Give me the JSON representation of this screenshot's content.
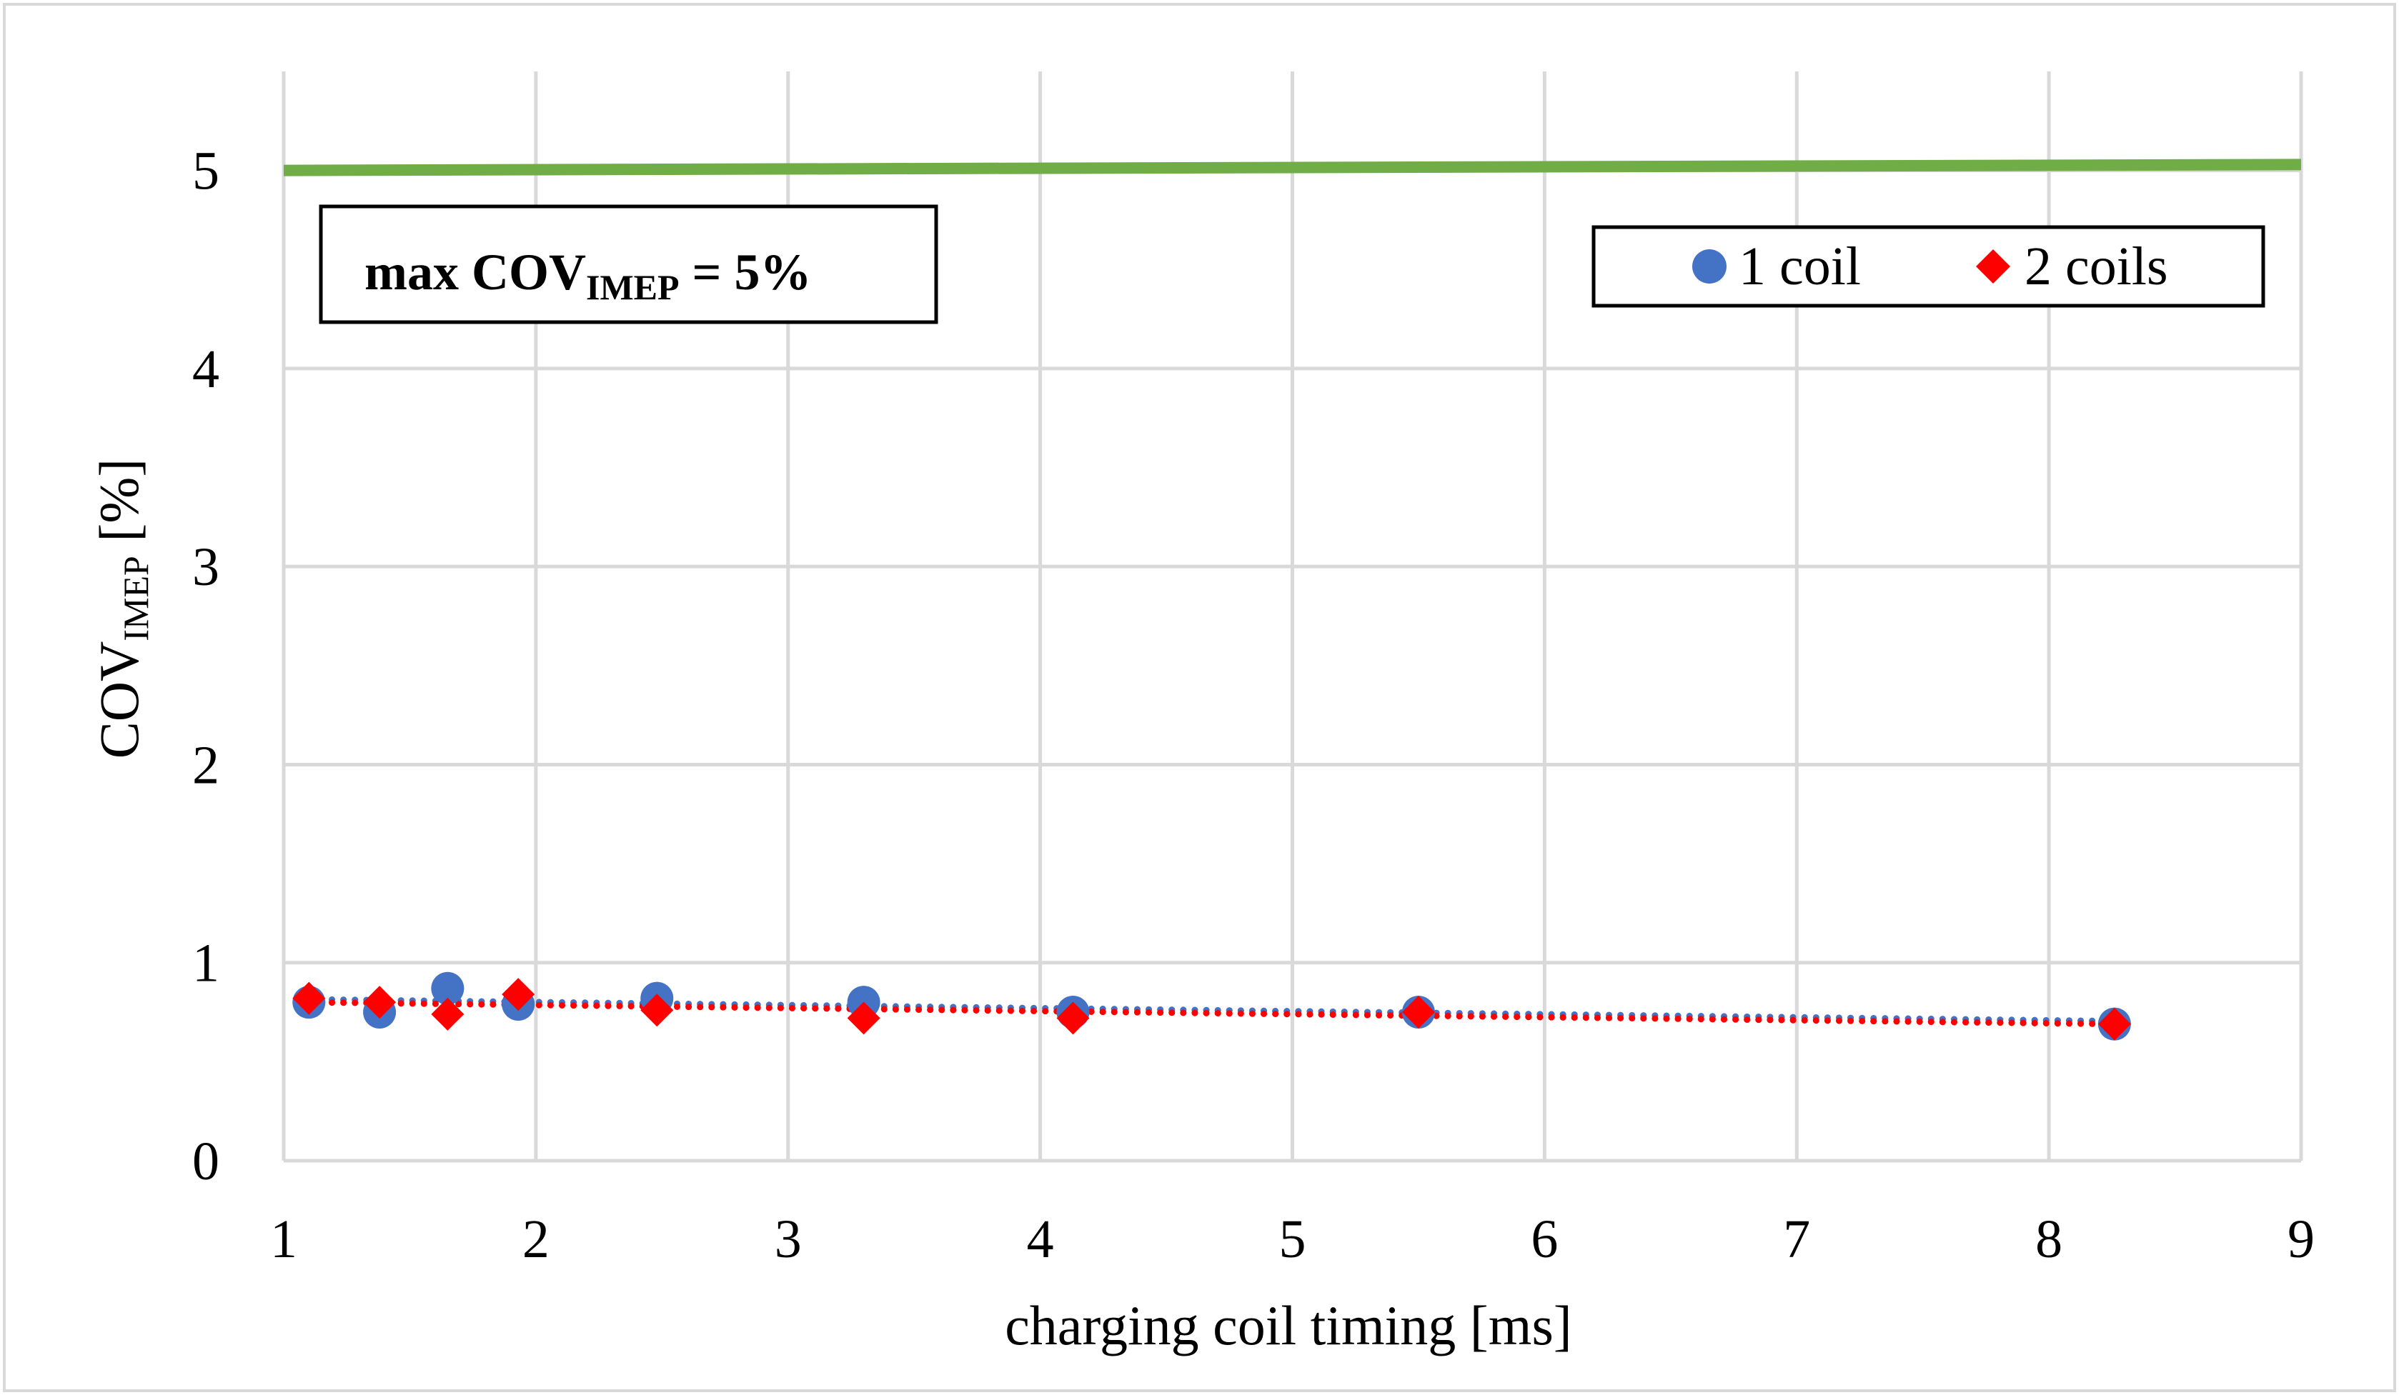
{
  "chart_data": {
    "type": "scatter",
    "title": "",
    "xlabel": "charging coil timing [ms]",
    "ylabel": {
      "main": "COV",
      "sub": "IMEP",
      "unit": " [%]"
    },
    "xlim": [
      1,
      9
    ],
    "ylim": [
      0,
      5.5
    ],
    "x_ticks": [
      1,
      2,
      3,
      4,
      5,
      6,
      7,
      8,
      9
    ],
    "y_ticks": [
      0,
      1,
      2,
      3,
      4,
      5
    ],
    "grid": true,
    "legend_position": "top-right",
    "series": [
      {
        "name": "1 coil",
        "marker": "circle",
        "color": "#4472C4",
        "x": [
          1.1,
          1.38,
          1.65,
          1.93,
          2.48,
          3.3,
          4.13,
          5.5,
          8.26
        ],
        "y": [
          0.8,
          0.75,
          0.87,
          0.79,
          0.82,
          0.8,
          0.75,
          0.75,
          0.69
        ],
        "trendline": {
          "type": "linear",
          "style": "dotted",
          "x": [
            1.1,
            8.26
          ],
          "y": [
            0.815,
            0.705
          ]
        }
      },
      {
        "name": "2 coils",
        "marker": "diamond",
        "color": "#FF0000",
        "x": [
          1.1,
          1.38,
          1.65,
          1.93,
          2.48,
          3.3,
          4.13,
          5.5,
          8.26
        ],
        "y": [
          0.82,
          0.8,
          0.74,
          0.84,
          0.76,
          0.72,
          0.72,
          0.75,
          0.69
        ],
        "trendline": {
          "type": "linear",
          "style": "dotted",
          "x": [
            1.1,
            8.26
          ],
          "y": [
            0.8,
            0.69
          ]
        }
      }
    ],
    "reference_line": {
      "label": "max COV_IMEP = 5%",
      "color": "#70AD47",
      "x": [
        1,
        9
      ],
      "y": [
        5.0,
        5.03
      ]
    },
    "annotation": {
      "prefix": "max COV",
      "sub": "IMEP",
      "suffix": " = 5%"
    }
  }
}
